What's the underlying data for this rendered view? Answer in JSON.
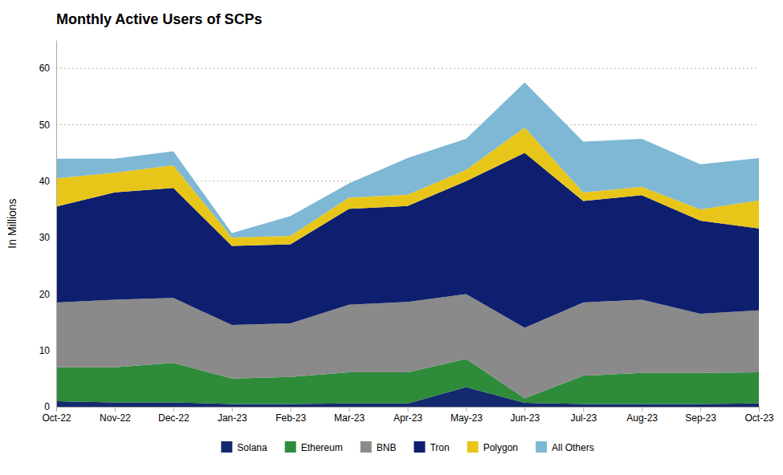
{
  "chart_data": {
    "type": "area",
    "title": "Monthly Active Users of SCPs",
    "ylabel": "In Millions",
    "categories": [
      "Oct-22",
      "Nov-22",
      "Dec-22",
      "Jan-23",
      "Feb-23",
      "Mar-23",
      "Apr-23",
      "May-23",
      "Jun-23",
      "Jul-23",
      "Aug-23",
      "Sep-23",
      "Oct-23"
    ],
    "series": [
      {
        "name": "Solana",
        "color": "#152a6e",
        "values": [
          1.0,
          0.8,
          0.8,
          0.5,
          0.5,
          0.6,
          0.6,
          3.5,
          0.7,
          0.5,
          0.5,
          0.5,
          0.6
        ]
      },
      {
        "name": "Ethereum",
        "color": "#2e8b3a",
        "values": [
          6.0,
          6.2,
          7.0,
          4.5,
          4.8,
          5.5,
          5.5,
          5.0,
          0.8,
          5.0,
          5.5,
          5.5,
          5.5
        ]
      },
      {
        "name": "BNB",
        "color": "#8a8a8a",
        "values": [
          11.5,
          12.0,
          11.5,
          9.5,
          9.5,
          12.0,
          12.5,
          11.5,
          12.5,
          13.0,
          13.0,
          10.5,
          11.0
        ]
      },
      {
        "name": "Tron",
        "color": "#0d1f6e",
        "values": [
          17.0,
          19.0,
          19.5,
          14.0,
          14.0,
          17.0,
          17.0,
          20.0,
          31.0,
          18.0,
          18.5,
          16.5,
          14.5
        ]
      },
      {
        "name": "Polygon",
        "color": "#e8c619",
        "values": [
          5.0,
          3.5,
          4.0,
          1.5,
          1.5,
          2.0,
          2.0,
          2.0,
          4.5,
          1.5,
          1.5,
          2.0,
          5.0
        ]
      },
      {
        "name": "All Others",
        "color": "#7eb8d4",
        "values": [
          3.5,
          2.5,
          2.5,
          0.8,
          3.5,
          2.5,
          6.5,
          5.5,
          8.0,
          9.0,
          8.5,
          8.0,
          7.5
        ]
      }
    ],
    "stacked": true,
    "ylim": [
      0,
      65
    ],
    "yticks": [
      0,
      10,
      20,
      30,
      40,
      50,
      60
    ],
    "grid": true,
    "legend": "bottom"
  }
}
